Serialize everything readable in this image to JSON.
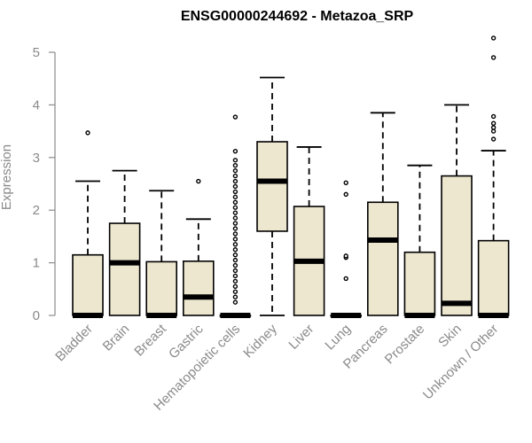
{
  "chart_data": {
    "type": "box",
    "title": "ENSG00000244692 - Metazoa_SRP",
    "xlabel": "",
    "ylabel": "Expression",
    "ylim": [
      0,
      5.3
    ],
    "yticks": [
      0,
      1,
      2,
      3,
      4,
      5
    ],
    "categories": [
      "Bladder",
      "Brain",
      "Breast",
      "Gastric",
      "Hematopoietic cells",
      "Kidney",
      "Liver",
      "Lung",
      "Pancreas",
      "Prostate",
      "Skin",
      "Unknown / Other"
    ],
    "boxes": [
      {
        "name": "Bladder",
        "min": 0,
        "q1": 0,
        "median": 0,
        "q3": 1.15,
        "max": 2.55,
        "outliers": [
          3.47
        ]
      },
      {
        "name": "Brain",
        "min": 0,
        "q1": 0,
        "median": 1.0,
        "q3": 1.75,
        "max": 2.75,
        "outliers": []
      },
      {
        "name": "Breast",
        "min": 0,
        "q1": 0,
        "median": 0,
        "q3": 1.02,
        "max": 2.37,
        "outliers": []
      },
      {
        "name": "Gastric",
        "min": 0,
        "q1": 0,
        "median": 0.35,
        "q3": 1.03,
        "max": 1.83,
        "outliers": [
          2.55
        ]
      },
      {
        "name": "Hematopoietic cells",
        "min": 0,
        "q1": 0,
        "median": 0,
        "q3": 0,
        "max": 0,
        "outliers": [
          0.25,
          0.35,
          0.45,
          0.55,
          0.65,
          0.75,
          0.85,
          0.95,
          1.05,
          1.15,
          1.25,
          1.35,
          1.45,
          1.55,
          1.65,
          1.75,
          1.85,
          1.95,
          2.05,
          2.15,
          2.25,
          2.35,
          2.45,
          2.55,
          2.65,
          2.75,
          2.85,
          2.95,
          3.12,
          3.77
        ]
      },
      {
        "name": "Kidney",
        "min": 0,
        "q1": 1.6,
        "median": 2.55,
        "q3": 3.3,
        "max": 4.52,
        "outliers": []
      },
      {
        "name": "Liver",
        "min": 0,
        "q1": 0,
        "median": 1.03,
        "q3": 2.07,
        "max": 3.2,
        "outliers": []
      },
      {
        "name": "Lung",
        "min": 0,
        "q1": 0,
        "median": 0,
        "q3": 0,
        "max": 0,
        "outliers": [
          0.7,
          1.1,
          1.13,
          2.3,
          2.52
        ]
      },
      {
        "name": "Pancreas",
        "min": 0,
        "q1": 0,
        "median": 1.43,
        "q3": 2.15,
        "max": 3.85,
        "outliers": []
      },
      {
        "name": "Prostate",
        "min": 0,
        "q1": 0,
        "median": 0,
        "q3": 1.2,
        "max": 2.85,
        "outliers": []
      },
      {
        "name": "Skin",
        "min": 0,
        "q1": 0,
        "median": 0.23,
        "q3": 2.65,
        "max": 4.0,
        "outliers": []
      },
      {
        "name": "Unknown / Other",
        "min": 0,
        "q1": 0,
        "median": 0,
        "q3": 1.42,
        "max": 3.13,
        "outliers": [
          3.35,
          3.5,
          3.57,
          3.65,
          3.78,
          4.9,
          5.27
        ]
      }
    ],
    "colors": {
      "box_fill": "#ede7cf",
      "stroke": "#000000",
      "axis_text": "#8a8a8a"
    },
    "grid": false,
    "legend": "none"
  }
}
